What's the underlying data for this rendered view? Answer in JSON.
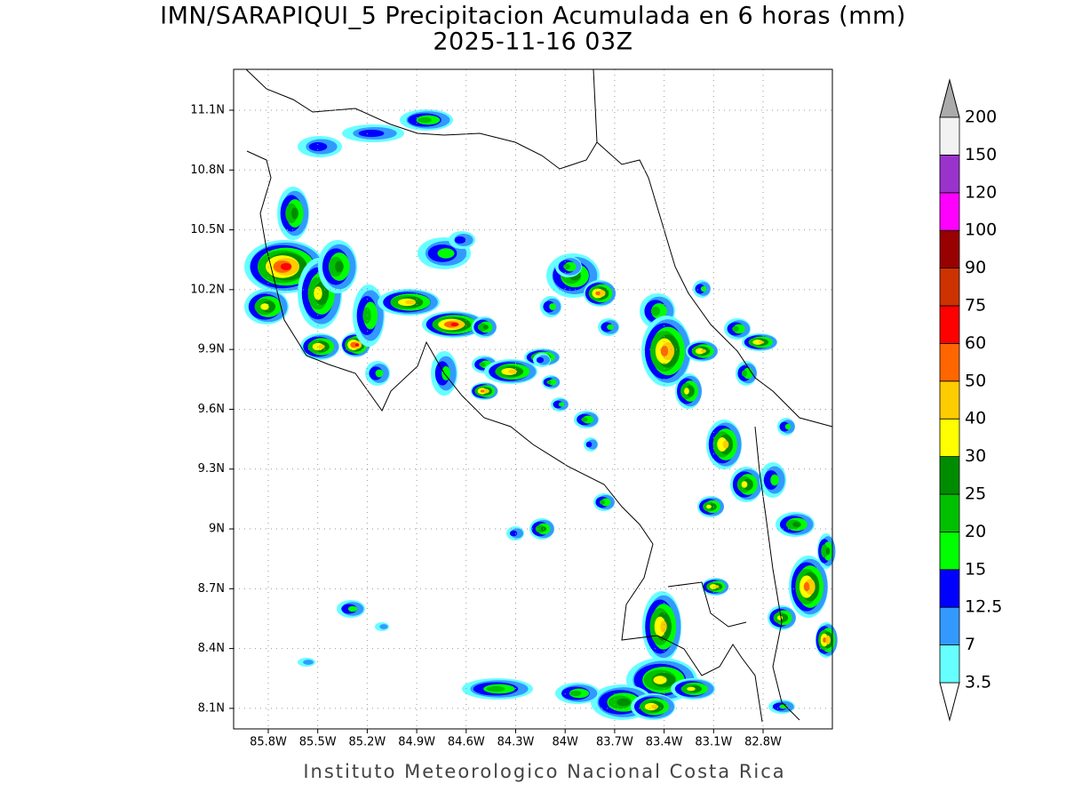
{
  "map": {
    "title": "IMN/SARAPIQUI_5 Precipitacion Acumulada en 6 horas (mm)",
    "subtitle": "2025-11-16 03Z",
    "footer": "Instituto Meteorologico Nacional Costa Rica",
    "lon_lim": [
      -86.01,
      -82.38
    ],
    "lat_lim": [
      7.997,
      11.305
    ],
    "lon_ticks": [
      {
        "value": -85.8,
        "label": "85.8W"
      },
      {
        "value": -85.5,
        "label": "85.5W"
      },
      {
        "value": -85.2,
        "label": "85.2W"
      },
      {
        "value": -84.9,
        "label": "84.9W"
      },
      {
        "value": -84.6,
        "label": "84.6W"
      },
      {
        "value": -84.3,
        "label": "84.3W"
      },
      {
        "value": -84,
        "label": "84W"
      },
      {
        "value": -83.7,
        "label": "83.7W"
      },
      {
        "value": -83.4,
        "label": "83.4W"
      },
      {
        "value": -83.1,
        "label": "83.1W"
      },
      {
        "value": -82.8,
        "label": "82.8W"
      }
    ],
    "lat_ticks": [
      {
        "value": 8.1,
        "label": "8.1N"
      },
      {
        "value": 8.4,
        "label": "8.4N"
      },
      {
        "value": 8.7,
        "label": "8.7N"
      },
      {
        "value": 9,
        "label": "9N"
      },
      {
        "value": 9.3,
        "label": "9.3N"
      },
      {
        "value": 9.6,
        "label": "9.6N"
      },
      {
        "value": 9.9,
        "label": "9.9N"
      },
      {
        "value": 10.2,
        "label": "10.2N"
      },
      {
        "value": 10.5,
        "label": "10.5N"
      },
      {
        "value": 10.8,
        "label": "10.8N"
      },
      {
        "value": 11.1,
        "label": "11.1N"
      }
    ],
    "grid": true,
    "colorbar": {
      "levels": [
        3.5,
        7,
        12.5,
        15,
        20,
        25,
        30,
        40,
        50,
        60,
        75,
        90,
        100,
        120,
        150,
        200
      ],
      "colors": [
        "#66ffff",
        "#3399ff",
        "#0000ff",
        "#00ff00",
        "#00c000",
        "#008c00",
        "#ffff00",
        "#ffcc00",
        "#ff6600",
        "#ff0000",
        "#cc3300",
        "#990000",
        "#ff00ff",
        "#9933cc",
        "#f2f2f2"
      ],
      "under_color": "#ffffff",
      "over_color": "#aaaaaa"
    }
  }
}
